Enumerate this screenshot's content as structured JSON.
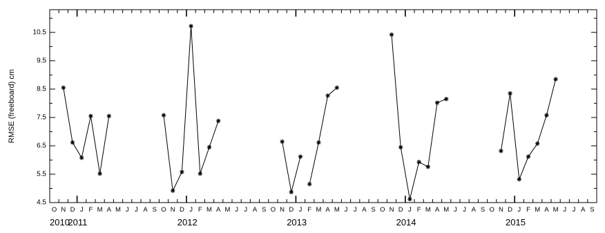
{
  "chart_data": {
    "type": "line",
    "title": "",
    "xlabel": "",
    "ylabel": "RMSE (freeboard) cm",
    "ylim": [
      4.5,
      11.3
    ],
    "xlim": [
      "2010-10",
      "2015-09"
    ],
    "yticks": [
      "4.5",
      "5.5",
      "6.5",
      "7.5",
      "8.5",
      "9.5",
      "10.5"
    ],
    "month_letters": [
      "O",
      "N",
      "D",
      "J",
      "F",
      "M",
      "A",
      "M",
      "J",
      "J",
      "A",
      "S",
      "O",
      "N",
      "D",
      "J",
      "F",
      "M",
      "A",
      "M",
      "J",
      "J",
      "A",
      "S",
      "O",
      "N",
      "D",
      "J",
      "F",
      "M",
      "A",
      "M",
      "J",
      "J",
      "A",
      "S",
      "O",
      "N",
      "D",
      "J",
      "F",
      "M",
      "A",
      "M",
      "J",
      "J",
      "A",
      "S",
      "O",
      "N",
      "D",
      "J",
      "F",
      "M",
      "A",
      "M",
      "J",
      "J",
      "A",
      "S"
    ],
    "year_labels": [
      "2010",
      "2011",
      "2012",
      "2013",
      "2014",
      "2015"
    ],
    "marker": "asterisk",
    "line_color": "#000000",
    "grid": false,
    "segments": [
      {
        "x": [
          "2010-11",
          "2010-12",
          "2011-01",
          "2011-02",
          "2011-03",
          "2011-04"
        ],
        "y": [
          8.55,
          6.62,
          6.08,
          7.55,
          5.52,
          7.55
        ]
      },
      {
        "x": [
          "2011-10",
          "2011-11",
          "2011-12",
          "2012-01",
          "2012-02",
          "2012-03",
          "2012-04"
        ],
        "y": [
          7.58,
          4.92,
          5.58,
          10.72,
          5.52,
          6.45,
          7.38
        ]
      },
      {
        "x": [
          "2012-11",
          "2012-12",
          "2013-01"
        ],
        "y": [
          6.65,
          4.87,
          6.12
        ]
      },
      {
        "x": [
          "2013-02",
          "2013-03",
          "2013-04",
          "2013-05"
        ],
        "y": [
          5.15,
          6.62,
          8.27,
          8.55
        ]
      },
      {
        "x": [
          "2013-11",
          "2013-12",
          "2014-01",
          "2014-02",
          "2014-03",
          "2014-04",
          "2014-05"
        ],
        "y": [
          10.42,
          6.45,
          4.62,
          5.93,
          5.76,
          8.02,
          8.15
        ]
      },
      {
        "x": [
          "2014-11",
          "2014-12",
          "2015-01",
          "2015-02",
          "2015-03",
          "2015-04",
          "2015-05"
        ],
        "y": [
          6.32,
          8.35,
          5.32,
          6.12,
          6.58,
          7.58,
          8.85
        ]
      }
    ]
  }
}
